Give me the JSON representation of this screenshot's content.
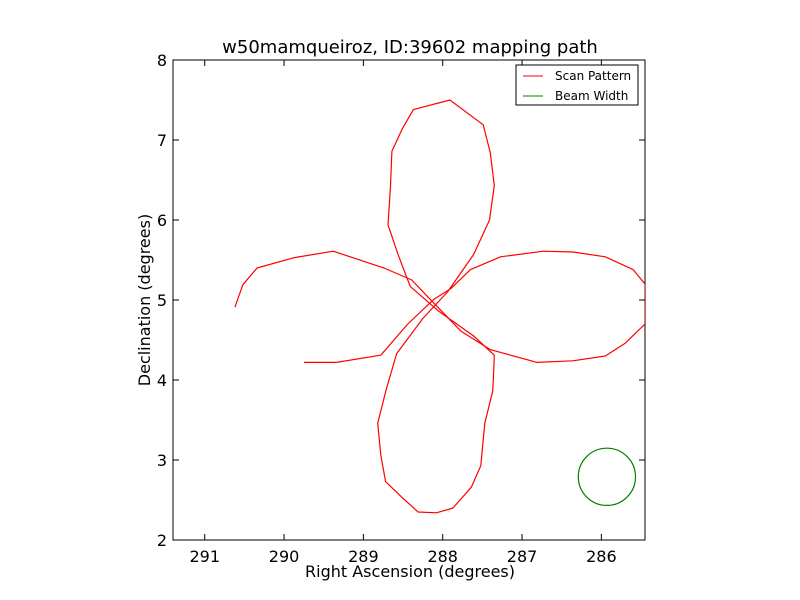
{
  "chart_data": {
    "type": "line",
    "title": "w50mamqueiroz, ID:39602 mapping path",
    "xlabel": "Right Ascension (degrees)",
    "ylabel": "Declination (degrees)",
    "xlim": [
      291.4,
      285.45
    ],
    "ylim": [
      2,
      8
    ],
    "x_inverted": true,
    "xticks": [
      291,
      290,
      289,
      288,
      287,
      286
    ],
    "yticks": [
      2,
      3,
      4,
      5,
      6,
      7,
      8
    ],
    "grid": false,
    "legend_position": "top-right",
    "series": [
      {
        "name": "Scan Pattern",
        "color": "#ff0000",
        "points": [
          [
            290.62,
            4.91
          ],
          [
            290.52,
            5.19
          ],
          [
            290.34,
            5.4
          ],
          [
            289.87,
            5.53
          ],
          [
            289.38,
            5.61
          ],
          [
            288.74,
            5.4
          ],
          [
            288.39,
            5.25
          ],
          [
            288.14,
            4.99
          ],
          [
            287.77,
            4.61
          ],
          [
            287.4,
            4.38
          ],
          [
            286.81,
            4.22
          ],
          [
            286.36,
            4.24
          ],
          [
            285.95,
            4.3
          ],
          [
            285.7,
            4.46
          ],
          [
            285.45,
            4.7
          ],
          [
            285.45,
            5.2
          ],
          [
            285.6,
            5.38
          ],
          [
            285.95,
            5.54
          ],
          [
            286.36,
            5.6
          ],
          [
            286.73,
            5.61
          ],
          [
            287.27,
            5.54
          ],
          [
            287.65,
            5.38
          ],
          [
            287.9,
            5.14
          ],
          [
            288.11,
            5.01
          ],
          [
            288.44,
            4.7
          ],
          [
            288.78,
            4.31
          ],
          [
            289.34,
            4.22
          ],
          [
            289.75,
            4.22
          ]
        ]
      },
      {
        "name": "",
        "color": "#ff0000",
        "points": [
          [
            287.91,
            7.5
          ],
          [
            288.37,
            7.38
          ],
          [
            288.51,
            7.14
          ],
          [
            288.64,
            6.86
          ],
          [
            288.66,
            6.4
          ],
          [
            288.69,
            5.94
          ],
          [
            288.56,
            5.56
          ],
          [
            288.41,
            5.17
          ],
          [
            288.05,
            4.86
          ],
          [
            287.61,
            4.55
          ],
          [
            287.35,
            4.31
          ],
          [
            287.36,
            4.05
          ],
          [
            287.37,
            3.86
          ],
          [
            287.47,
            3.46
          ],
          [
            287.52,
            2.93
          ],
          [
            287.64,
            2.66
          ],
          [
            287.87,
            2.4
          ],
          [
            288.08,
            2.34
          ],
          [
            288.31,
            2.35
          ],
          [
            288.5,
            2.52
          ],
          [
            288.72,
            2.73
          ],
          [
            288.78,
            3.06
          ],
          [
            288.82,
            3.46
          ],
          [
            288.71,
            3.89
          ],
          [
            288.58,
            4.33
          ],
          [
            288.25,
            4.77
          ],
          [
            287.94,
            5.1
          ],
          [
            287.61,
            5.57
          ],
          [
            287.41,
            6.0
          ],
          [
            287.35,
            6.43
          ],
          [
            287.4,
            6.84
          ],
          [
            287.49,
            7.19
          ],
          [
            287.91,
            7.5
          ]
        ]
      }
    ],
    "beam": {
      "name": "Beam Width",
      "color": "#008000",
      "center": [
        285.93,
        2.79
      ],
      "radius": 0.36
    }
  }
}
